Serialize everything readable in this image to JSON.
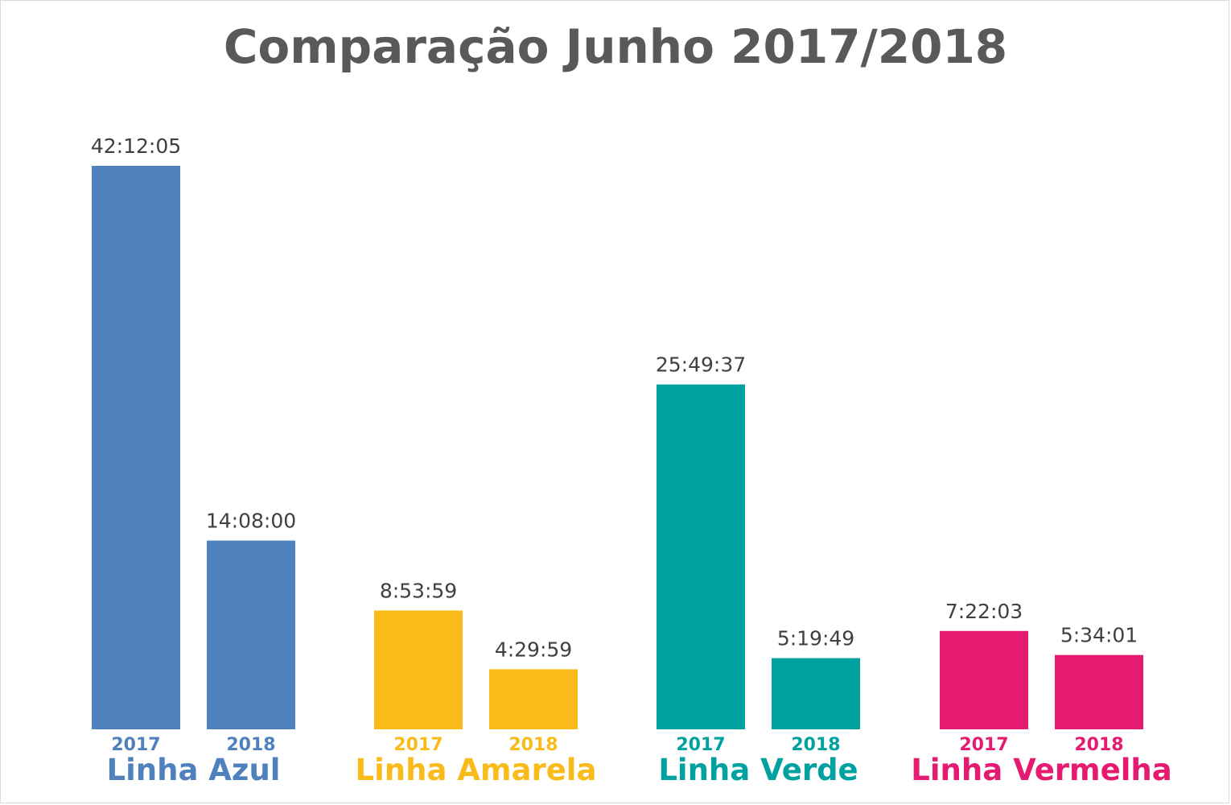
{
  "chart_data": {
    "type": "bar",
    "title": "Comparação Junho 2017/2018",
    "xlabel": "",
    "ylabel": "",
    "unit": "h:mm:ss",
    "ylim": [
      0,
      45
    ],
    "grid": false,
    "legend": "none",
    "groups": [
      {
        "name": "Linha Azul",
        "color": "#4f81bd",
        "bars": [
          {
            "year": "2017",
            "label": "42:12:05",
            "value": 42.2014
          },
          {
            "year": "2018",
            "label": "14:08:00",
            "value": 14.1333
          }
        ]
      },
      {
        "name": "Linha Amarela",
        "color": "#f9bb1a",
        "bars": [
          {
            "year": "2017",
            "label": "8:53:59",
            "value": 8.8997
          },
          {
            "year": "2018",
            "label": "4:29:59",
            "value": 4.4997
          }
        ]
      },
      {
        "name": "Linha Verde",
        "color": "#00a1a1",
        "bars": [
          {
            "year": "2017",
            "label": "25:49:37",
            "value": 25.8269
          },
          {
            "year": "2018",
            "label": "5:19:49",
            "value": 5.3303
          }
        ]
      },
      {
        "name": "Linha Vermelha",
        "color": "#e51a71",
        "bars": [
          {
            "year": "2017",
            "label": "7:22:03",
            "value": 7.3675
          },
          {
            "year": "2018",
            "label": "5:34:01",
            "value": 5.5669
          }
        ]
      }
    ]
  }
}
